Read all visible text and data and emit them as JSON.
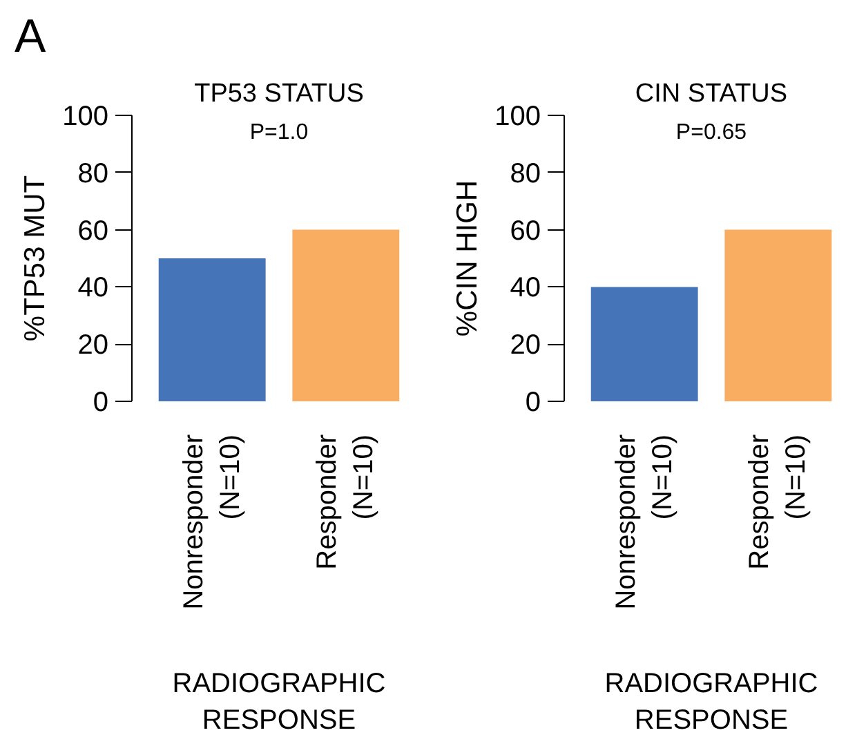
{
  "chart_data": [
    {
      "type": "bar",
      "title": "TP53 STATUS",
      "xlabel": "RADIOGRAPHIC\nRESPONSE",
      "ylabel": "%TP53 MUT",
      "categories": [
        "Nonresponder\n(N=10)",
        "Responder\n(N=10)"
      ],
      "values": [
        50,
        60
      ],
      "colors": [
        "#4575b8",
        "#f9ad60"
      ],
      "ylim": [
        0,
        100
      ],
      "yticks": [
        0,
        20,
        40,
        60,
        80,
        100
      ],
      "annotations": [
        "A",
        "P=1.0"
      ]
    },
    {
      "type": "bar",
      "title": "CIN STATUS",
      "xlabel": "RADIOGRAPHIC\nRESPONSE",
      "ylabel": "%CIN HIGH",
      "categories": [
        "Nonresponder\n(N=10)",
        "Responder\n(N=10)"
      ],
      "values": [
        40,
        60
      ],
      "colors": [
        "#4575b8",
        "#f9ad60"
      ],
      "ylim": [
        0,
        100
      ],
      "yticks": [
        0,
        20,
        40,
        60,
        80,
        100
      ],
      "annotations": [
        "P=0.65"
      ]
    }
  ]
}
